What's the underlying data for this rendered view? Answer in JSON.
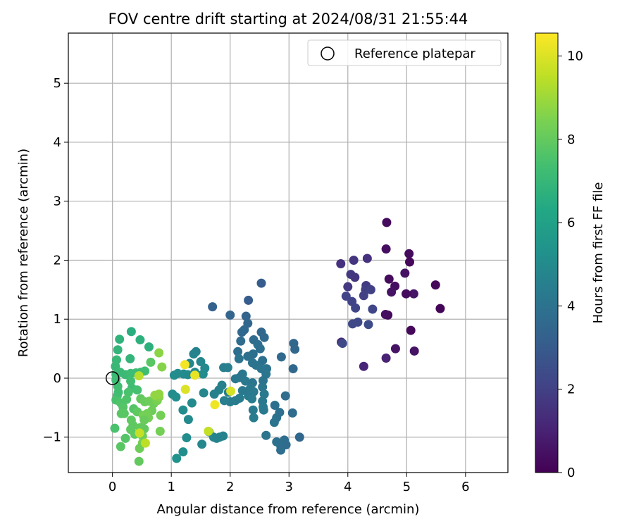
{
  "chart_data": {
    "type": "scatter",
    "title": "FOV centre drift starting at 2024/08/31 21:55:44",
    "xlabel": "Angular distance from reference (arcmin)",
    "ylabel": "Rotation from reference (arcmin)",
    "xlim": [
      -0.75,
      6.72
    ],
    "ylim": [
      -1.6,
      5.85
    ],
    "xticks": [
      0,
      1,
      2,
      3,
      4,
      5,
      6
    ],
    "yticks": [
      -1,
      0,
      1,
      2,
      3,
      4,
      5
    ],
    "xtick_labels": [
      "0",
      "1",
      "2",
      "3",
      "4",
      "5",
      "6"
    ],
    "ytick_labels": [
      "−1",
      "0",
      "1",
      "2",
      "3",
      "4",
      "5"
    ],
    "grid": true,
    "legend": {
      "position": "top-right",
      "label": "Reference platepar",
      "marker": "hollow circle"
    },
    "reference_point": {
      "x": 0,
      "y": 0
    },
    "colorbar": {
      "label": "Hours from first FF file",
      "colormap": "viridis",
      "range": [
        0,
        10.55
      ],
      "ticks": [
        0,
        2,
        4,
        6,
        8,
        10
      ],
      "tick_labels": [
        "0",
        "2",
        "4",
        "6",
        "8",
        "10"
      ]
    },
    "series": [
      {
        "columns": [
          "x",
          "y",
          "hours"
        ],
        "points": [
          [
            4.66,
            2.64,
            0.3
          ],
          [
            4.65,
            2.19,
            0.4
          ],
          [
            5.04,
            2.11,
            0.3
          ],
          [
            5.05,
            1.97,
            0.2
          ],
          [
            4.97,
            1.78,
            0.5
          ],
          [
            4.7,
            1.68,
            0.3
          ],
          [
            4.8,
            1.56,
            0.4
          ],
          [
            4.74,
            1.46,
            0.5
          ],
          [
            5.12,
            1.43,
            0.6
          ],
          [
            4.99,
            1.43,
            0.3
          ],
          [
            5.49,
            1.58,
            0.2
          ],
          [
            5.57,
            1.18,
            0.1
          ],
          [
            4.68,
            1.07,
            0.2
          ],
          [
            4.64,
            1.08,
            0.4
          ],
          [
            5.07,
            0.81,
            0.2
          ],
          [
            4.81,
            0.5,
            0.5
          ],
          [
            5.13,
            0.46,
            0.5
          ],
          [
            4.65,
            0.34,
            1.0
          ],
          [
            4.27,
            0.2,
            1.1
          ],
          [
            3.89,
            0.61,
            1.3
          ],
          [
            3.88,
            1.94,
            1.5
          ],
          [
            4.33,
            2.03,
            1.5
          ],
          [
            4.1,
            2.0,
            1.6
          ],
          [
            4.05,
            1.76,
            1.7
          ],
          [
            4.12,
            1.71,
            1.6
          ],
          [
            4.0,
            1.55,
            1.7
          ],
          [
            4.31,
            1.57,
            1.8
          ],
          [
            4.3,
            1.5,
            1.9
          ],
          [
            4.39,
            1.5,
            2.0
          ],
          [
            4.27,
            1.4,
            2.0
          ],
          [
            3.97,
            1.39,
            2.1
          ],
          [
            4.07,
            1.3,
            2.1
          ],
          [
            4.13,
            1.19,
            2.2
          ],
          [
            4.42,
            1.17,
            2.2
          ],
          [
            4.08,
            0.92,
            2.3
          ],
          [
            4.17,
            0.95,
            2.3
          ],
          [
            4.35,
            0.91,
            2.4
          ],
          [
            3.91,
            0.59,
            2.3
          ],
          [
            2.53,
            1.61,
            3.1
          ],
          [
            2.31,
            1.32,
            3.1
          ],
          [
            1.7,
            1.21,
            3.3
          ],
          [
            2.0,
            1.07,
            3.4
          ],
          [
            2.27,
            1.05,
            3.4
          ],
          [
            2.3,
            0.93,
            3.5
          ],
          [
            2.24,
            0.82,
            3.6
          ],
          [
            2.2,
            0.78,
            3.6
          ],
          [
            2.53,
            0.78,
            3.5
          ],
          [
            2.58,
            0.69,
            3.6
          ],
          [
            2.4,
            0.65,
            3.7
          ],
          [
            2.18,
            0.63,
            3.7
          ],
          [
            2.47,
            0.57,
            3.8
          ],
          [
            2.51,
            0.5,
            3.8
          ],
          [
            2.13,
            0.45,
            3.8
          ],
          [
            2.39,
            0.41,
            3.9
          ],
          [
            2.3,
            0.37,
            3.9
          ],
          [
            2.15,
            0.33,
            4.0
          ],
          [
            2.55,
            0.3,
            3.9
          ],
          [
            2.38,
            0.26,
            4.0
          ],
          [
            2.44,
            0.22,
            4.0
          ],
          [
            2.62,
            0.16,
            4.0
          ],
          [
            2.53,
            0.16,
            4.1
          ],
          [
            2.87,
            0.36,
            3.6
          ],
          [
            3.08,
            0.59,
            3.5
          ],
          [
            3.1,
            0.49,
            3.5
          ],
          [
            3.07,
            0.16,
            3.6
          ],
          [
            2.61,
            0.07,
            4.1
          ],
          [
            2.21,
            0.07,
            4.2
          ],
          [
            2.16,
            0.01,
            4.1
          ],
          [
            2.09,
            -0.01,
            4.2
          ],
          [
            2.26,
            -0.05,
            4.2
          ],
          [
            2.38,
            -0.08,
            4.1
          ],
          [
            2.56,
            -0.04,
            4.0
          ],
          [
            2.55,
            -0.15,
            4.1
          ],
          [
            2.34,
            -0.18,
            4.2
          ],
          [
            2.21,
            -0.21,
            4.2
          ],
          [
            2.4,
            -0.23,
            4.3
          ],
          [
            2.58,
            -0.27,
            4.3
          ],
          [
            2.31,
            -0.3,
            4.3
          ],
          [
            2.37,
            -0.35,
            4.4
          ],
          [
            2.16,
            -0.34,
            4.4
          ],
          [
            2.09,
            -0.38,
            4.4
          ],
          [
            2.0,
            -0.4,
            4.4
          ],
          [
            1.9,
            -0.38,
            4.5
          ],
          [
            2.55,
            -0.39,
            4.2
          ],
          [
            2.56,
            -0.49,
            4.3
          ],
          [
            2.57,
            -0.54,
            4.3
          ],
          [
            2.39,
            -0.54,
            4.3
          ],
          [
            2.4,
            -0.67,
            4.4
          ],
          [
            2.94,
            -0.3,
            3.7
          ],
          [
            2.76,
            -0.46,
            3.9
          ],
          [
            2.84,
            -0.58,
            3.8
          ],
          [
            3.06,
            -0.59,
            3.7
          ],
          [
            2.79,
            -0.67,
            3.9
          ],
          [
            2.75,
            -0.75,
            4.0
          ],
          [
            2.61,
            -0.97,
            4.0
          ],
          [
            2.92,
            -1.05,
            3.8
          ],
          [
            2.79,
            -1.08,
            3.9
          ],
          [
            2.86,
            -1.15,
            3.9
          ],
          [
            2.86,
            -1.22,
            3.8
          ],
          [
            3.18,
            -1.0,
            3.5
          ],
          [
            2.95,
            -1.13,
            3.7
          ],
          [
            1.89,
            0.18,
            4.5
          ],
          [
            1.96,
            0.18,
            4.5
          ],
          [
            1.42,
            0.45,
            4.7
          ],
          [
            1.38,
            0.41,
            4.7
          ],
          [
            1.31,
            0.25,
            4.8
          ],
          [
            1.5,
            0.28,
            4.8
          ],
          [
            1.57,
            0.17,
            4.9
          ],
          [
            1.4,
            0.1,
            4.9
          ],
          [
            1.54,
            0.07,
            5.0
          ],
          [
            1.28,
            0.06,
            5.0
          ],
          [
            1.21,
            0.07,
            5.0
          ],
          [
            1.05,
            0.05,
            5.1
          ],
          [
            1.11,
            0.08,
            5.1
          ],
          [
            1.86,
            -0.12,
            4.6
          ],
          [
            1.81,
            -0.2,
            4.6
          ],
          [
            1.97,
            -0.24,
            4.5
          ],
          [
            1.73,
            -0.27,
            4.6
          ],
          [
            1.55,
            -0.25,
            4.8
          ],
          [
            1.02,
            -0.27,
            5.1
          ],
          [
            1.08,
            -0.32,
            5.2
          ],
          [
            1.35,
            -0.42,
            5.0
          ],
          [
            1.2,
            -0.54,
            5.1
          ],
          [
            1.29,
            -0.7,
            5.0
          ],
          [
            1.64,
            -0.91,
            4.9
          ],
          [
            1.72,
            -1.0,
            4.8
          ],
          [
            1.82,
            -1.0,
            4.7
          ],
          [
            1.88,
            -0.98,
            4.7
          ],
          [
            1.77,
            -1.02,
            4.7
          ],
          [
            1.52,
            -1.12,
            4.9
          ],
          [
            1.26,
            -1.01,
            5.1
          ],
          [
            1.2,
            -1.25,
            5.2
          ],
          [
            1.09,
            -1.36,
            5.3
          ],
          [
            0.32,
            0.79,
            6.6
          ],
          [
            0.47,
            0.65,
            6.7
          ],
          [
            0.62,
            0.53,
            6.7
          ],
          [
            0.12,
            0.66,
            6.8
          ],
          [
            0.09,
            0.48,
            6.9
          ],
          [
            0.3,
            0.33,
            6.9
          ],
          [
            0.07,
            0.31,
            7.0
          ],
          [
            0.05,
            0.2,
            7.0
          ],
          [
            0.13,
            0.1,
            7.1
          ],
          [
            0.22,
            0.06,
            7.1
          ],
          [
            0.31,
            0.08,
            7.2
          ],
          [
            0.4,
            0.09,
            7.2
          ],
          [
            0.48,
            0.1,
            7.2
          ],
          [
            0.55,
            0.12,
            7.3
          ],
          [
            0.65,
            0.27,
            7.8
          ],
          [
            0.79,
            0.43,
            8.7
          ],
          [
            0.84,
            0.19,
            8.6
          ],
          [
            0.06,
            0.06,
            7.1
          ],
          [
            0.06,
            -0.03,
            7.2
          ],
          [
            0.09,
            -0.14,
            7.3
          ],
          [
            0.08,
            -0.3,
            7.4
          ],
          [
            0.06,
            -0.37,
            7.5
          ],
          [
            0.14,
            -0.42,
            7.6
          ],
          [
            0.18,
            -0.49,
            7.7
          ],
          [
            0.2,
            -0.6,
            7.8
          ],
          [
            0.15,
            -0.6,
            7.8
          ],
          [
            0.33,
            -0.17,
            7.2
          ],
          [
            0.42,
            -0.2,
            7.4
          ],
          [
            0.27,
            -0.24,
            7.5
          ],
          [
            0.24,
            -0.36,
            7.6
          ],
          [
            0.36,
            -0.52,
            7.7
          ],
          [
            0.42,
            -0.57,
            7.9
          ],
          [
            0.48,
            -0.35,
            8.0
          ],
          [
            0.55,
            -0.4,
            8.1
          ],
          [
            0.63,
            -0.39,
            8.2
          ],
          [
            0.7,
            -0.43,
            8.2
          ],
          [
            0.76,
            -0.38,
            8.4
          ],
          [
            0.79,
            -0.32,
            8.6
          ],
          [
            0.79,
            -0.27,
            8.8
          ],
          [
            0.72,
            -0.29,
            8.8
          ],
          [
            0.67,
            -0.55,
            8.2
          ],
          [
            0.59,
            -0.6,
            8.3
          ],
          [
            0.52,
            -0.63,
            8.3
          ],
          [
            0.61,
            -0.67,
            8.3
          ],
          [
            0.54,
            -0.71,
            8.1
          ],
          [
            0.32,
            -0.71,
            7.9
          ],
          [
            0.35,
            -0.8,
            7.9
          ],
          [
            0.31,
            -0.87,
            7.9
          ],
          [
            0.38,
            -0.95,
            7.9
          ],
          [
            0.47,
            -0.84,
            8.0
          ],
          [
            0.54,
            -0.86,
            8.0
          ],
          [
            0.81,
            -0.9,
            8.3
          ],
          [
            0.51,
            -0.98,
            8.2
          ],
          [
            0.51,
            -1.1,
            8.3
          ],
          [
            0.46,
            -1.19,
            8.2
          ],
          [
            0.04,
            -0.85,
            7.5
          ],
          [
            0.22,
            -1.02,
            7.7
          ],
          [
            0.14,
            -1.16,
            7.8
          ],
          [
            0.45,
            -1.41,
            8.0
          ],
          [
            0.82,
            -0.63,
            8.3
          ],
          [
            0.31,
            -0.05,
            7.3
          ],
          [
            0.1,
            -0.24,
            7.3
          ],
          [
            0.45,
            0.04,
            9.4
          ],
          [
            1.23,
            0.23,
            10.4
          ],
          [
            1.4,
            0.05,
            10.2
          ],
          [
            1.24,
            -0.19,
            10.0
          ],
          [
            1.74,
            -0.45,
            10.3
          ],
          [
            2.01,
            -0.22,
            9.9
          ],
          [
            1.63,
            -0.9,
            9.6
          ],
          [
            0.46,
            -0.93,
            9.6
          ],
          [
            0.56,
            -1.1,
            9.5
          ]
        ]
      }
    ]
  }
}
